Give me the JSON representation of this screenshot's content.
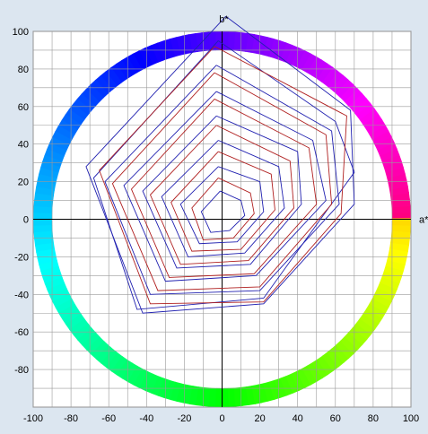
{
  "chart_data": {
    "type": "line",
    "xlabel": "a*",
    "ylabel": "b*",
    "xlim": [
      -100,
      100
    ],
    "ylim": [
      -100,
      100
    ],
    "x_ticks": [
      "-100",
      "-80",
      "-60",
      "-40",
      "-20",
      "0",
      "20",
      "40",
      "60",
      "80",
      "100"
    ],
    "y_ticks": [
      "100",
      "80",
      "60",
      "40",
      "20",
      "0",
      "-20",
      "-40",
      "-60",
      "-80"
    ],
    "grid": true,
    "background": "hue-ring",
    "colors": {
      "blue_series": "#2020b0",
      "red_series": "#b02020"
    },
    "series": [
      {
        "color": "blue",
        "points": [
          [
            2,
            108
          ],
          [
            68,
            58
          ],
          [
            70,
            8
          ],
          [
            22,
            -45
          ],
          [
            -42,
            -50
          ],
          [
            -72,
            28
          ]
        ]
      },
      {
        "color": "blue",
        "points": [
          [
            -2,
            95
          ],
          [
            60,
            52
          ],
          [
            70,
            25
          ],
          [
            22,
            -42
          ],
          [
            -45,
            -48
          ],
          [
            -68,
            22
          ]
        ]
      },
      {
        "color": "blue",
        "points": [
          [
            -3,
            82
          ],
          [
            58,
            47
          ],
          [
            62,
            8
          ],
          [
            20,
            -38
          ],
          [
            -38,
            -40
          ],
          [
            -62,
            20
          ]
        ]
      },
      {
        "color": "blue",
        "points": [
          [
            -3,
            68
          ],
          [
            48,
            42
          ],
          [
            55,
            10
          ],
          [
            18,
            -30
          ],
          [
            -30,
            -33
          ],
          [
            -52,
            18
          ]
        ]
      },
      {
        "color": "blue",
        "points": [
          [
            -3,
            55
          ],
          [
            40,
            36
          ],
          [
            42,
            8
          ],
          [
            15,
            -24
          ],
          [
            -24,
            -26
          ],
          [
            -42,
            15
          ]
        ]
      },
      {
        "color": "blue",
        "points": [
          [
            -2,
            42
          ],
          [
            30,
            28
          ],
          [
            33,
            6
          ],
          [
            12,
            -18
          ],
          [
            -18,
            -20
          ],
          [
            -32,
            12
          ]
        ]
      },
      {
        "color": "blue",
        "points": [
          [
            -2,
            28
          ],
          [
            20,
            20
          ],
          [
            22,
            4
          ],
          [
            8,
            -12
          ],
          [
            -12,
            -13
          ],
          [
            -22,
            8
          ]
        ]
      },
      {
        "color": "blue",
        "points": [
          [
            -1,
            15
          ],
          [
            10,
            10
          ],
          [
            12,
            2
          ],
          [
            4,
            -6
          ],
          [
            -6,
            -7
          ],
          [
            -11,
            4
          ]
        ]
      },
      {
        "color": "red",
        "points": [
          [
            -4,
            92
          ],
          [
            66,
            55
          ],
          [
            63,
            3
          ],
          [
            22,
            -44
          ],
          [
            -38,
            -45
          ],
          [
            -65,
            26
          ]
        ]
      },
      {
        "color": "red",
        "points": [
          [
            -4,
            78
          ],
          [
            55,
            45
          ],
          [
            58,
            8
          ],
          [
            20,
            -36
          ],
          [
            -34,
            -38
          ],
          [
            -58,
            19
          ]
        ]
      },
      {
        "color": "red",
        "points": [
          [
            -4,
            64
          ],
          [
            46,
            38
          ],
          [
            50,
            8
          ],
          [
            17,
            -29
          ],
          [
            -28,
            -31
          ],
          [
            -48,
            16
          ]
        ]
      },
      {
        "color": "red",
        "points": [
          [
            -3,
            50
          ],
          [
            36,
            31
          ],
          [
            38,
            6
          ],
          [
            14,
            -22
          ],
          [
            -22,
            -24
          ],
          [
            -38,
            13
          ]
        ]
      },
      {
        "color": "red",
        "points": [
          [
            -2,
            36
          ],
          [
            26,
            24
          ],
          [
            28,
            5
          ],
          [
            10,
            -16
          ],
          [
            -16,
            -17
          ],
          [
            -27,
            9
          ]
        ]
      },
      {
        "color": "red",
        "points": [
          [
            -2,
            22
          ],
          [
            15,
            14
          ],
          [
            17,
            3
          ],
          [
            6,
            -10
          ],
          [
            -10,
            -11
          ],
          [
            -16,
            6
          ]
        ]
      }
    ]
  }
}
